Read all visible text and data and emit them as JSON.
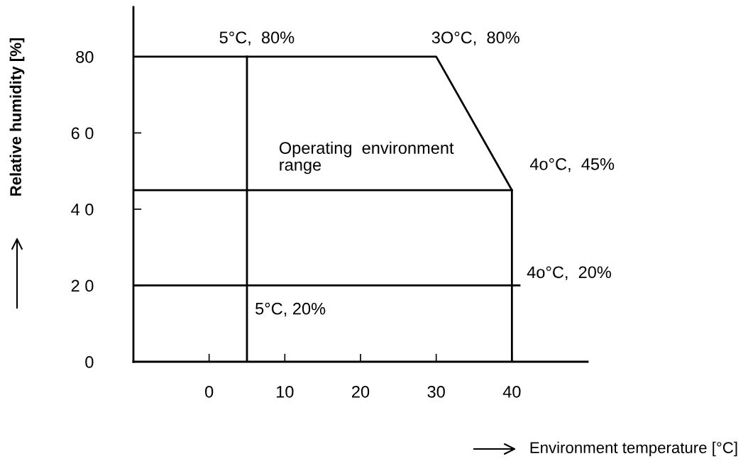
{
  "chart_data": {
    "type": "line",
    "xlabel": "Environment temperature [°C]",
    "ylabel": "Relative humidity [%]",
    "xlim": [
      -10,
      50
    ],
    "ylim": [
      0,
      93
    ],
    "xticks": [
      0,
      10,
      20,
      30,
      40
    ],
    "yticks": [
      0,
      {
        "value": 20,
        "label": "2 0"
      },
      {
        "value": 40,
        "label": "4 0"
      },
      {
        "value": 60,
        "label": "6 0"
      },
      80
    ],
    "grid": false,
    "legend": false,
    "marker": "none",
    "line_style": "solid",
    "series": [
      {
        "color": "#000000",
        "x": [
          -10,
          30,
          40,
          40
        ],
        "values": [
          80,
          80,
          45,
          0
        ]
      },
      {
        "color": "#000000",
        "x": [
          -10,
          40
        ],
        "values": [
          45,
          45
        ]
      },
      {
        "color": "#000000",
        "x": [
          -10,
          41
        ],
        "values": [
          20,
          20
        ]
      },
      {
        "color": "#000000",
        "x": [
          5,
          5
        ],
        "values": [
          80,
          0
        ]
      }
    ],
    "annotations": [
      {
        "text": "5°C,  80%",
        "x": 5,
        "y": 80
      },
      {
        "text": "3O°C,  80%",
        "x": 30,
        "y": 80
      },
      {
        "text": "4o°C,  45%",
        "x": 40,
        "y": 45
      },
      {
        "text": "4o°C,  20%",
        "x": 40,
        "y": 20
      },
      {
        "text": "5°C, 20%",
        "x": 5,
        "y": 20
      },
      "Operating  environment\nrange"
    ]
  }
}
